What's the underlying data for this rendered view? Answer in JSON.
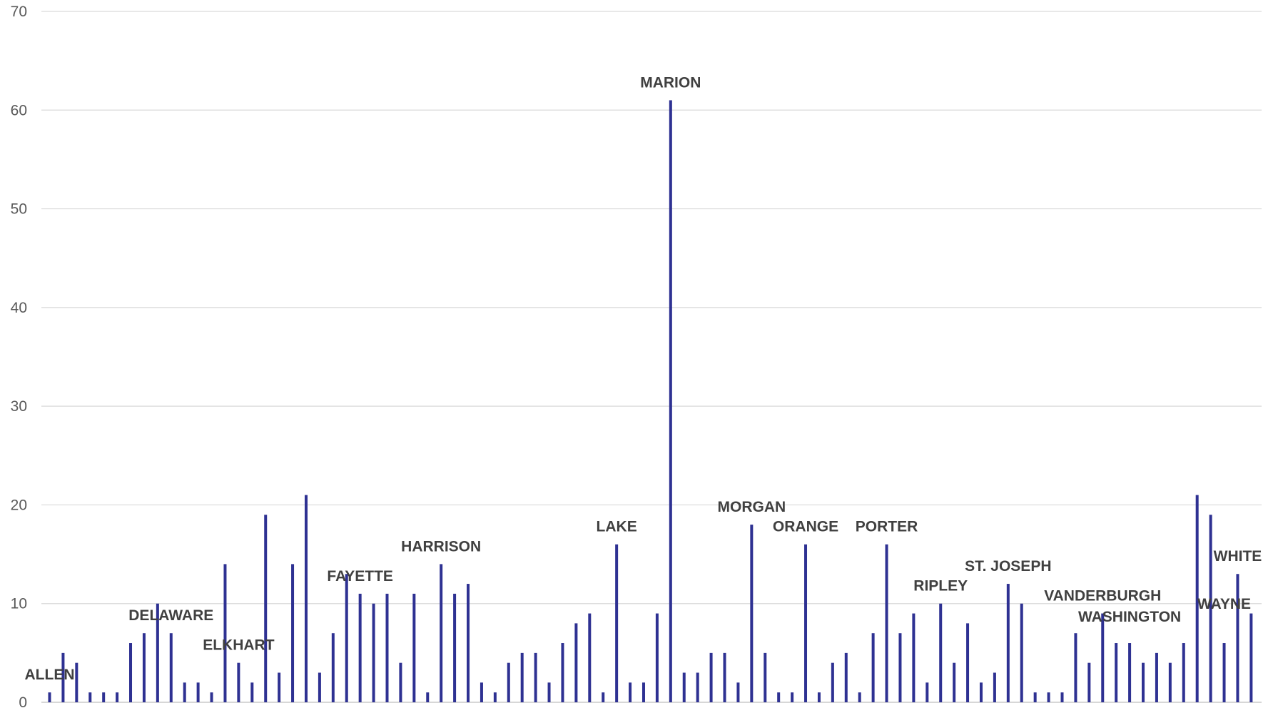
{
  "chart_data": {
    "type": "bar",
    "title": "",
    "xlabel": "",
    "ylabel": "",
    "ylim": [
      0,
      70
    ],
    "yticks": [
      0,
      10,
      20,
      30,
      40,
      50,
      60,
      70
    ],
    "grid": true,
    "legend": "none",
    "bar_color": "#2e3192",
    "values": [
      1,
      5,
      4,
      1,
      1,
      1,
      6,
      7,
      10,
      7,
      2,
      2,
      1,
      14,
      4,
      2,
      19,
      3,
      14,
      21,
      3,
      7,
      13,
      11,
      10,
      11,
      4,
      11,
      1,
      14,
      11,
      12,
      2,
      1,
      4,
      5,
      5,
      2,
      6,
      8,
      9,
      1,
      16,
      2,
      2,
      9,
      61,
      3,
      3,
      5,
      5,
      2,
      18,
      5,
      1,
      1,
      16,
      1,
      4,
      5,
      1,
      7,
      16,
      7,
      9,
      2,
      10,
      4,
      8,
      2,
      3,
      12,
      10,
      1,
      1,
      1,
      7,
      4,
      9,
      6,
      6,
      4,
      5,
      4,
      6,
      21,
      19,
      6,
      13,
      9
    ],
    "annotations": [
      {
        "label": "ALLEN",
        "index": 0
      },
      {
        "label": "DELAWARE",
        "index": 9
      },
      {
        "label": "ELKHART",
        "index": 14
      },
      {
        "label": "FAYETTE",
        "index": 23
      },
      {
        "label": "HARRISON",
        "index": 29
      },
      {
        "label": "LAKE",
        "index": 42
      },
      {
        "label": "MARION",
        "index": 46
      },
      {
        "label": "MORGAN",
        "index": 52
      },
      {
        "label": "ORANGE",
        "index": 56
      },
      {
        "label": "PORTER",
        "index": 62
      },
      {
        "label": "RIPLEY",
        "index": 66
      },
      {
        "label": "ST. JOSEPH",
        "index": 71
      },
      {
        "label": "VANDERBURGH",
        "index": 78
      },
      {
        "label": "WASHINGTON",
        "index": 80
      },
      {
        "label": "WAYNE",
        "index": 87
      },
      {
        "label": "WHITE",
        "index": 88
      }
    ]
  }
}
